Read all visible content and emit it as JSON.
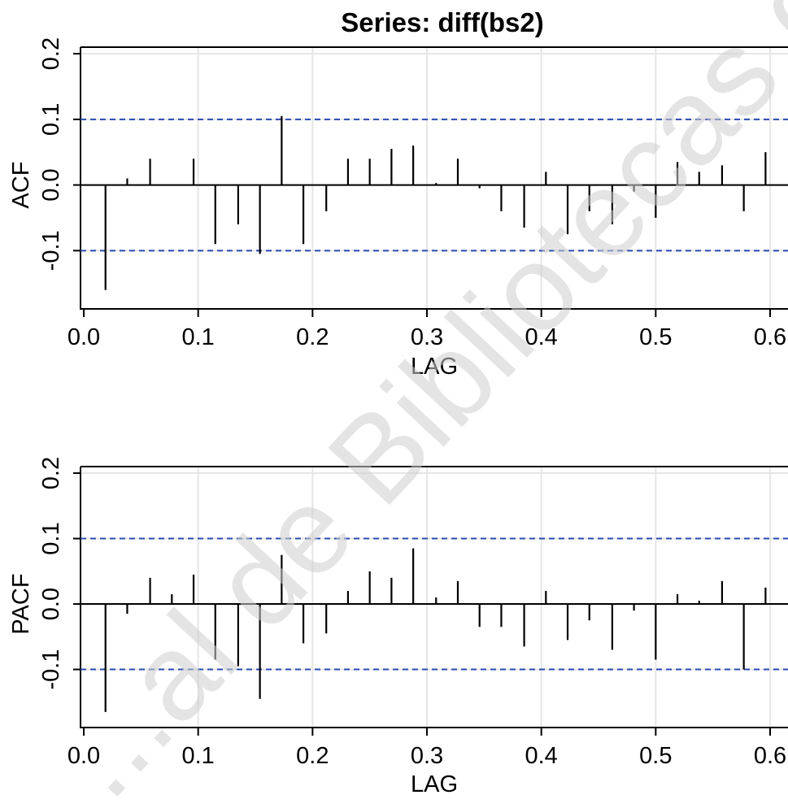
{
  "title": "Series:  diff(bs2)",
  "watermark": "...al de Bibliotecas d",
  "colors": {
    "bars": "#000000",
    "confidence_bands": "#2a4bb0",
    "grid": "#e6e6e6",
    "watermark": "#cfcfcf"
  },
  "chart_data": [
    {
      "type": "bar",
      "ylabel": "ACF",
      "xlabel": "LAG",
      "xlim": [
        0.0,
        0.6
      ],
      "ylim": [
        -0.19,
        0.21
      ],
      "xticks": [
        "0.0",
        "0.1",
        "0.2",
        "0.3",
        "0.4",
        "0.5",
        "0.6"
      ],
      "yticks": [
        "-0.1",
        "0.0",
        "0.1",
        "0.2"
      ],
      "confidence_band": 0.1,
      "grid": true,
      "x": [
        0.019,
        0.038,
        0.058,
        0.077,
        0.096,
        0.115,
        0.135,
        0.154,
        0.173,
        0.192,
        0.212,
        0.231,
        0.25,
        0.269,
        0.288,
        0.308,
        0.327,
        0.346,
        0.365,
        0.385,
        0.404,
        0.423,
        0.442,
        0.462,
        0.481,
        0.5,
        0.519,
        0.538,
        0.558,
        0.577,
        0.596
      ],
      "values": [
        -0.16,
        0.01,
        0.04,
        0.0,
        0.04,
        -0.09,
        -0.06,
        -0.105,
        0.105,
        -0.09,
        -0.04,
        0.04,
        0.04,
        0.055,
        0.06,
        0.003,
        0.04,
        -0.005,
        -0.04,
        -0.065,
        0.02,
        -0.075,
        -0.04,
        -0.06,
        -0.01,
        -0.05,
        0.035,
        0.02,
        0.03,
        -0.04,
        0.05
      ]
    },
    {
      "type": "bar",
      "ylabel": "PACF",
      "xlabel": "LAG",
      "xlim": [
        0.0,
        0.6
      ],
      "ylim": [
        -0.19,
        0.21
      ],
      "xticks": [
        "0.0",
        "0.1",
        "0.2",
        "0.3",
        "0.4",
        "0.5",
        "0.6"
      ],
      "yticks": [
        "-0.1",
        "0.0",
        "0.1",
        "0.2"
      ],
      "confidence_band": 0.1,
      "grid": true,
      "x": [
        0.019,
        0.038,
        0.058,
        0.077,
        0.096,
        0.115,
        0.135,
        0.154,
        0.173,
        0.192,
        0.212,
        0.231,
        0.25,
        0.269,
        0.288,
        0.308,
        0.327,
        0.346,
        0.365,
        0.385,
        0.404,
        0.423,
        0.442,
        0.462,
        0.481,
        0.5,
        0.519,
        0.538,
        0.558,
        0.577,
        0.596
      ],
      "values": [
        -0.165,
        -0.015,
        0.04,
        0.015,
        0.045,
        -0.085,
        -0.095,
        -0.145,
        0.075,
        -0.06,
        -0.045,
        0.02,
        0.05,
        0.04,
        0.085,
        0.01,
        0.035,
        -0.035,
        -0.035,
        -0.065,
        0.02,
        -0.055,
        -0.025,
        -0.07,
        -0.01,
        -0.085,
        0.015,
        0.005,
        0.035,
        -0.1,
        0.025
      ]
    }
  ]
}
